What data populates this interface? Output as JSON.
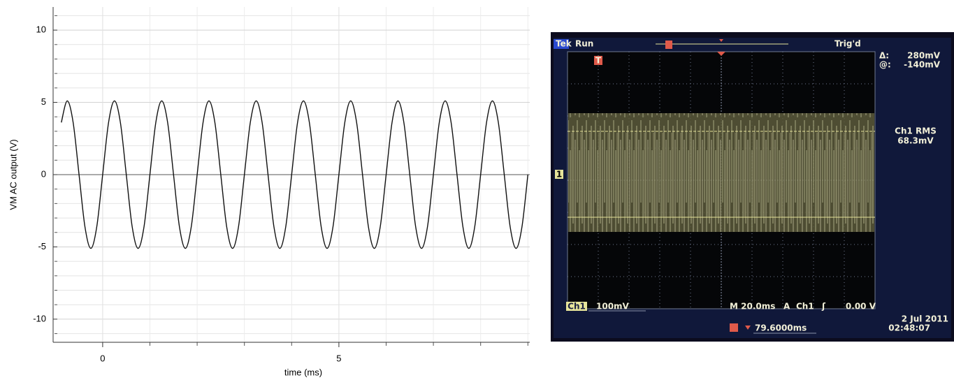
{
  "chart_data": {
    "type": "line",
    "x_label": "time (ms)",
    "y_label": "VM AC output (V)",
    "x": [
      -0.875,
      -0.75,
      -0.625,
      -0.5,
      -0.375,
      -0.25,
      -0.125,
      0,
      0.125,
      0.25,
      0.375,
      0.5,
      0.625,
      0.75,
      0.875,
      1,
      1.125,
      1.25,
      1.375,
      1.5,
      1.625,
      1.75,
      1.875,
      2,
      2.125,
      2.25,
      2.375,
      2.5,
      2.625,
      2.75,
      2.875,
      3,
      3.125,
      3.25,
      3.375,
      3.5,
      3.625,
      3.75,
      3.875,
      4,
      4.125,
      4.25,
      4.375,
      4.5,
      4.625,
      4.75,
      4.875,
      5,
      5.125,
      5.25,
      5.375,
      5.5,
      5.625,
      5.75,
      5.875,
      6,
      6.125,
      6.25,
      6.375,
      6.5,
      6.625,
      6.75,
      6.875,
      7,
      7.125,
      7.25,
      7.375,
      7.5,
      7.625,
      7.75,
      7.875,
      8,
      8.125,
      8.25,
      8.375,
      8.5,
      8.625,
      8.75,
      8.875,
      9
    ],
    "series": [
      {
        "color": "#111111",
        "values": [
          3.61,
          5.1,
          3.61,
          0,
          -3.61,
          -5.1,
          -3.61,
          0,
          3.61,
          5.1,
          3.61,
          0,
          -3.61,
          -5.1,
          -3.61,
          0,
          3.61,
          5.1,
          3.61,
          0,
          -3.61,
          -5.1,
          -3.61,
          0,
          3.61,
          5.1,
          3.61,
          0,
          -3.61,
          -5.1,
          -3.61,
          0,
          3.61,
          5.1,
          3.61,
          0,
          -3.61,
          -5.1,
          -3.61,
          0,
          3.61,
          5.1,
          3.61,
          0,
          -3.61,
          -5.1,
          -3.61,
          0,
          3.61,
          5.1,
          3.61,
          0,
          -3.61,
          -5.1,
          -3.61,
          0,
          3.61,
          5.1,
          3.61,
          0,
          -3.61,
          -5.1,
          -3.61,
          0,
          3.61,
          5.1,
          3.61,
          0,
          -3.61,
          -5.1,
          -3.61,
          0,
          3.61,
          5.1,
          3.61,
          0,
          -3.61,
          -5.1,
          -3.61,
          0
        ]
      }
    ],
    "xlim": [
      -0.96,
      9.04
    ],
    "ylim": [
      -11.6,
      11.6
    ],
    "xticks": [
      0,
      5
    ],
    "xminorticks": [
      1,
      2,
      3,
      4,
      6,
      7,
      8,
      9
    ],
    "yticks": [
      -10,
      -5,
      0,
      5,
      10
    ],
    "yminorticks": [
      -11,
      -9,
      -8,
      -7,
      -6,
      -4,
      -3,
      -2,
      -1,
      1,
      2,
      3,
      4,
      6,
      7,
      8,
      9,
      11
    ],
    "grid": true
  },
  "scope": {
    "brand": "Tek",
    "state": "Run",
    "trigger": "Trig'd",
    "delta_label": "Δ:",
    "delta": "280mV",
    "at_label": "@:",
    "at": "-140mV",
    "measure_name": "Ch1 RMS",
    "measure_value": "68.3mV",
    "channel": "Ch1",
    "scale": "100mV",
    "timebase": "M 20.0ms",
    "trig_source_label": "A",
    "trig_channel": "Ch1",
    "trig_level": "0.00 V",
    "trig_offset": "79.6000ms",
    "date": "2 Jul  2011",
    "time": "02:48:07",
    "trig_marker": "T",
    "channel_marker": "1"
  }
}
